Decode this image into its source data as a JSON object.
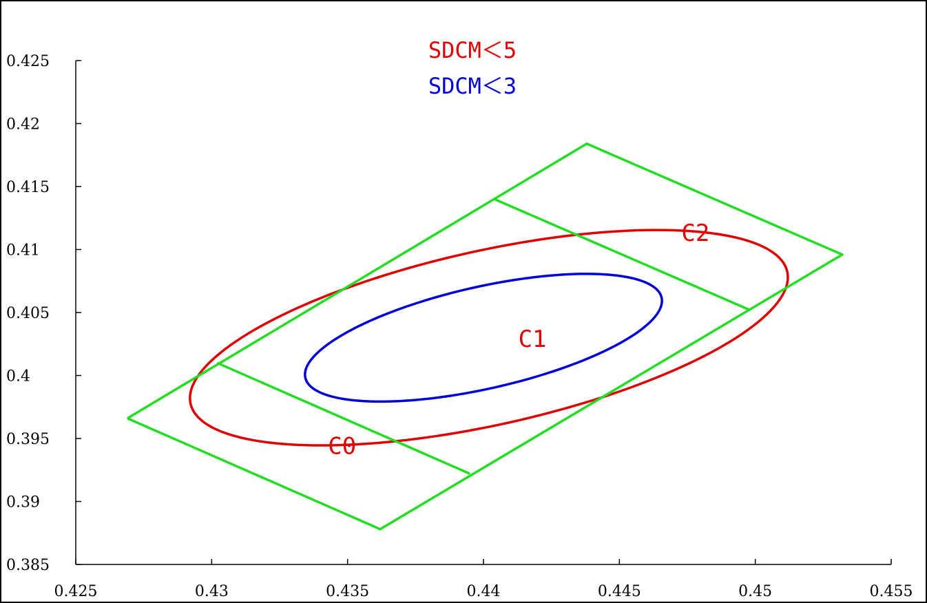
{
  "chart_data": {
    "type": "line",
    "title": "",
    "xlabel": "",
    "ylabel": "",
    "xlim": [
      0.425,
      0.455
    ],
    "ylim": [
      0.385,
      0.425
    ],
    "x_ticks": [
      "0.425",
      "0.43",
      "0.435",
      "0.44",
      "0.445",
      "0.45",
      "0.455"
    ],
    "y_ticks": [
      "0.425",
      "0.42",
      "0.415",
      "0.41",
      "0.405",
      "0.4",
      "0.395",
      "0.39",
      "0.385"
    ],
    "grid": false,
    "legend_position": "top-center",
    "legend": [
      {
        "label": "SDCM＜5",
        "color": "#e00000"
      },
      {
        "label": "SDCM＜3",
        "color": "#0000dd"
      }
    ],
    "annotations": [
      {
        "text": "C0",
        "x": 0.4348,
        "y": 0.3943
      },
      {
        "text": "C1",
        "x": 0.4418,
        "y": 0.4028
      },
      {
        "text": "C2",
        "x": 0.4478,
        "y": 0.4112
      }
    ],
    "series": [
      {
        "name": "SDCM＜5",
        "color": "#e00000",
        "shape": "ellipse",
        "center": [
          0.4402,
          0.403
        ],
        "semi_major": 0.01245,
        "semi_minor": 0.00625,
        "angle_deg": 32.8
      },
      {
        "name": "SDCM＜3",
        "color": "#0000dd",
        "shape": "ellipse",
        "center": [
          0.44,
          0.403
        ],
        "semi_major": 0.00745,
        "semi_minor": 0.00365,
        "angle_deg": 32.8
      },
      {
        "name": "",
        "color": "#22dd22",
        "shape": "polygon",
        "points": [
          [
            0.4269,
            0.3966
          ],
          [
            0.4438,
            0.4184
          ],
          [
            0.4532,
            0.4096
          ],
          [
            0.4362,
            0.3878
          ]
        ]
      },
      {
        "name": "",
        "color": "#22dd22",
        "shape": "polyline",
        "points": [
          [
            0.4302,
            0.401
          ],
          [
            0.4395,
            0.3922
          ]
        ]
      },
      {
        "name": "",
        "color": "#22dd22",
        "shape": "polyline",
        "points": [
          [
            0.4404,
            0.414
          ],
          [
            0.4498,
            0.4052
          ]
        ]
      }
    ]
  }
}
